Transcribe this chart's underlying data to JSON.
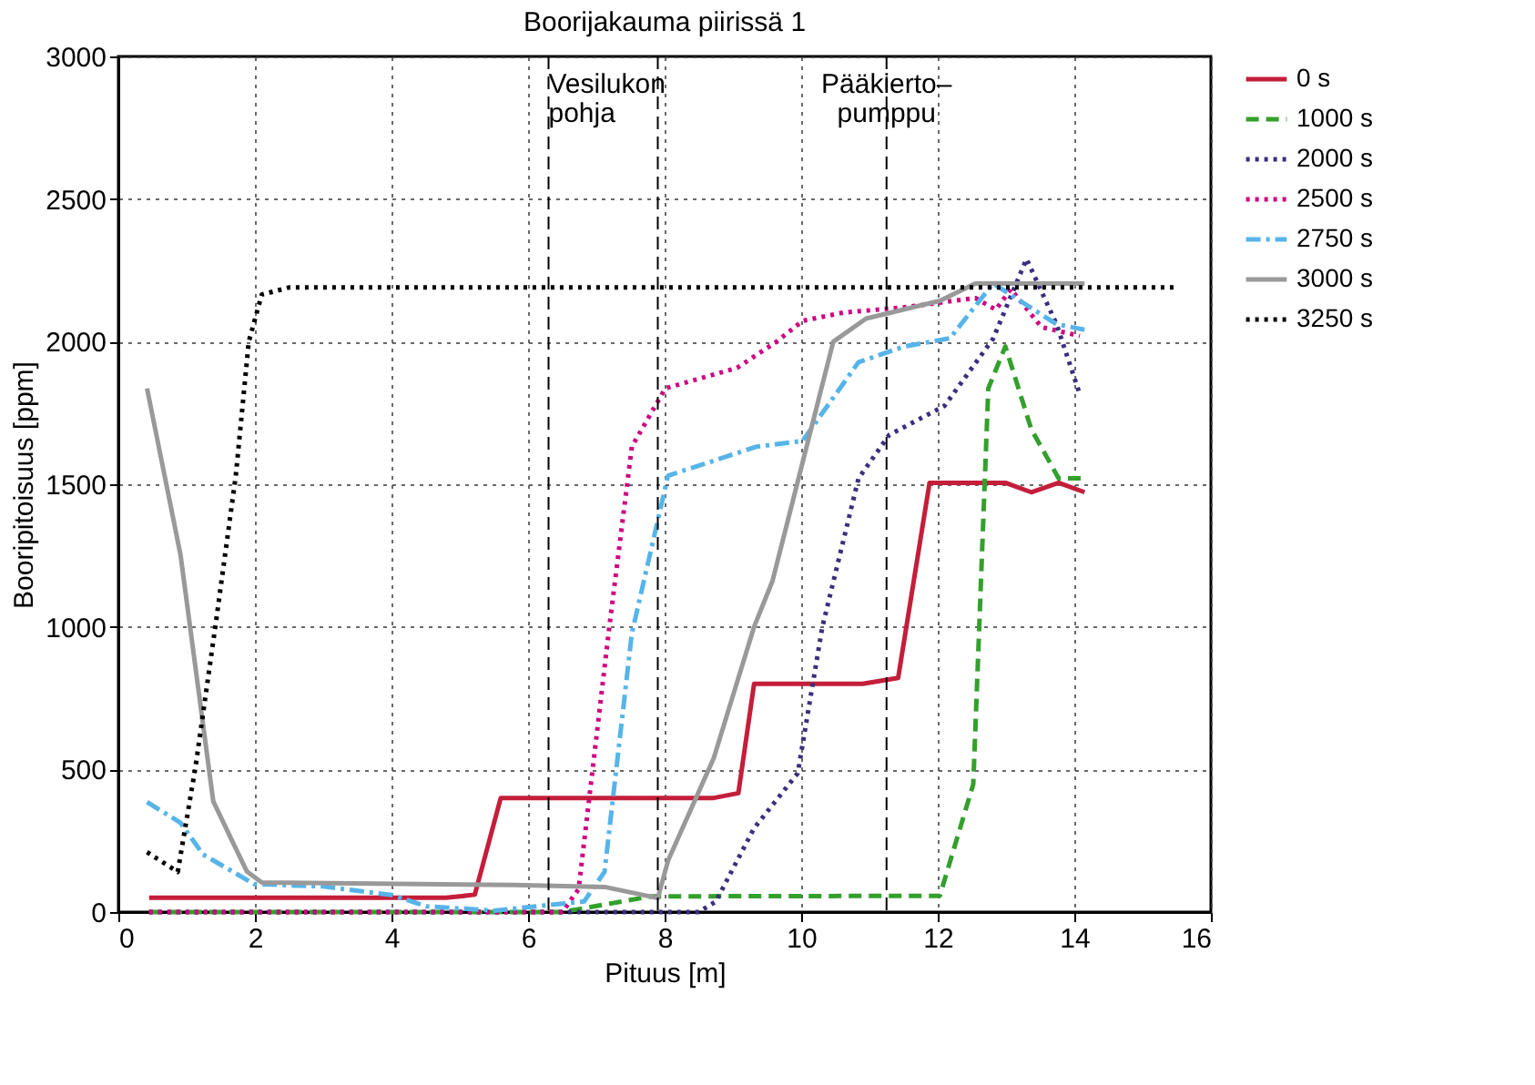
{
  "chart_data": {
    "type": "line",
    "title": "Boorijakauma piirissä 1",
    "xlabel": "Pituus [m]",
    "ylabel": "Booripitoisuus [ppm]",
    "xlim": [
      0,
      16
    ],
    "xticks": [
      0,
      2,
      4,
      6,
      8,
      10,
      12,
      14,
      16
    ],
    "ylim": [
      0,
      3000
    ],
    "yticks": [
      0,
      500,
      {
        "value": 1000,
        "label": "1000"
      },
      {
        "value": 1500,
        "label": "1500"
      },
      {
        "value": 2000,
        "label": "2000"
      },
      {
        "value": 2500,
        "label": "2500"
      },
      {
        "value": 3000,
        "label": "3000"
      }
    ],
    "grid": true,
    "legend": "top right",
    "marker": "none",
    "series": [
      {
        "name": "0 s",
        "color": "#c41e3a",
        "line_style": "solid",
        "x": [
          0.45,
          4.8,
          5.22,
          5.6,
          8.72,
          9.08,
          9.31,
          10.9,
          11.42,
          11.88,
          12.99,
          13.37,
          13.77,
          14.15
        ],
        "values": [
          50,
          50,
          61,
          400,
          400,
          417,
          800,
          800,
          821,
          1505,
          1505,
          1472,
          1505,
          1472
        ]
      },
      {
        "name": "1000 s",
        "color": "#33a02c",
        "line_style": "dashed",
        "x": [
          0.45,
          6.5,
          7.8,
          12.03,
          12.52,
          12.74,
          12.99,
          13.37,
          13.77,
          14.15
        ],
        "values": [
          0,
          0,
          55,
          57,
          448,
          1836,
          1983,
          1693,
          1521,
          1521
        ]
      },
      {
        "name": "2000 s",
        "color": "#3b2e7e",
        "line_style": "dotted",
        "x": [
          0.45,
          8.5,
          8.75,
          9.31,
          9.95,
          10.31,
          10.84,
          11.29,
          12.1,
          12.81,
          13.3,
          13.74,
          14.08
        ],
        "values": [
          0,
          0,
          37,
          294,
          487,
          1000,
          1521,
          1673,
          1775,
          2010,
          2290,
          2061,
          1816
        ]
      },
      {
        "name": "2500 s",
        "color": "#d0007f",
        "line_style": "dotted",
        "x": [
          0.45,
          6.5,
          6.74,
          7.19,
          7.52,
          8.01,
          9.06,
          9.64,
          10.02,
          10.62,
          11.5,
          12.55,
          12.85,
          13.07,
          13.52,
          14.08
        ],
        "values": [
          0,
          0,
          80,
          1000,
          1632,
          1836,
          1908,
          2000,
          2073,
          2102,
          2120,
          2153,
          2112,
          2184,
          2051,
          2020
        ]
      },
      {
        "name": "2750 s",
        "color": "#56b4e9",
        "line_style": "dashdot",
        "x": [
          0.42,
          0.91,
          1.24,
          1.99,
          3.0,
          4.0,
          4.51,
          5.5,
          6.82,
          7.12,
          7.52,
          8.05,
          9.35,
          10.02,
          10.84,
          11.51,
          12.18,
          12.81,
          13.74,
          14.15
        ],
        "values": [
          386,
          313,
          202,
          98,
          90,
          60,
          20,
          5,
          37,
          141,
          977,
          1530,
          1632,
          1652,
          1928,
          1983,
          2012,
          2204,
          2061,
          2042
        ]
      },
      {
        "name": "3000 s",
        "color": "#999999",
        "line_style": "solid",
        "x": [
          0.42,
          0.91,
          1.39,
          1.88,
          2.1,
          5.8,
          7.12,
          7.9,
          8.05,
          8.72,
          9.31,
          9.58,
          10.47,
          10.95,
          12.03,
          12.55,
          14.15
        ],
        "values": [
          1836,
          1253,
          388,
          143,
          104,
          95,
          88,
          49,
          180,
          540,
          1000,
          1161,
          2000,
          2081,
          2143,
          2204,
          2204
        ]
      },
      {
        "name": "3250 s",
        "color": "#000000",
        "line_style": "dotted",
        "x": [
          0.42,
          0.87,
          1.13,
          1.43,
          1.72,
          1.91,
          2.1,
          2.5,
          15.5
        ],
        "values": [
          210,
          141,
          509,
          1018,
          1530,
          2000,
          2165,
          2190,
          2190
        ]
      }
    ],
    "ref_lines": [
      {
        "axis": "x",
        "value": 6.3,
        "label": null,
        "color": "#000000",
        "line_style": "dashed"
      },
      {
        "axis": "x",
        "value": 7.9,
        "label": null,
        "color": "#000000",
        "line_style": "dashed"
      },
      {
        "axis": "x",
        "value": 11.25,
        "label": "Pääkierto– pumppu",
        "color": "#000000",
        "line_style": "dashed"
      }
    ],
    "annotations": [
      {
        "text": "Vesilukon pohja",
        "x": 6.3,
        "y": 2950
      }
    ]
  }
}
